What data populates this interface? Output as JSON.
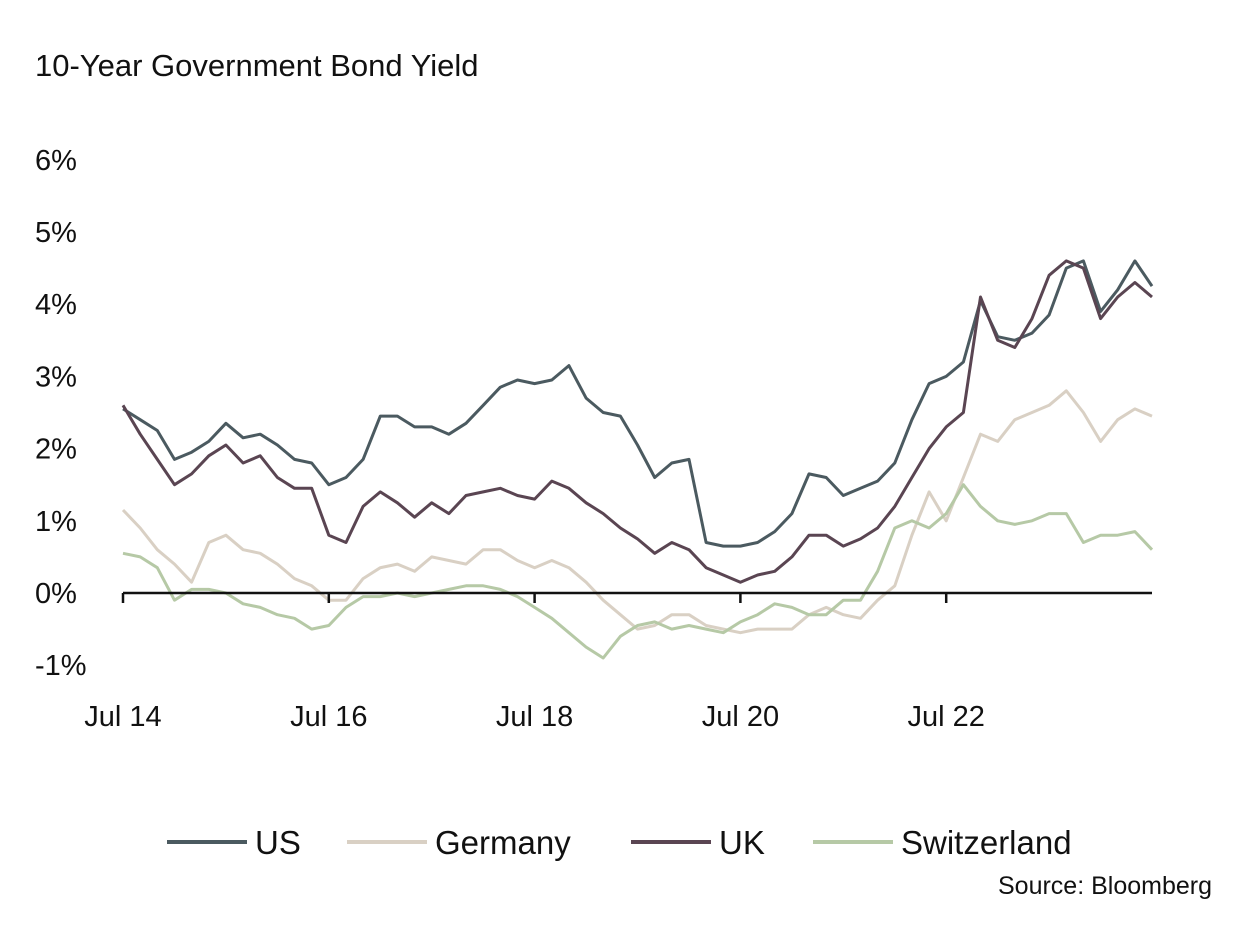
{
  "chart_data": {
    "type": "line",
    "title": "10-Year Government Bond Yield",
    "source": "Source: Bloomberg",
    "xlabel": "",
    "ylabel": "",
    "ylim": [
      -1,
      6
    ],
    "xlim": [
      2014.5,
      2024.5
    ],
    "y_ticks": [
      6,
      5,
      4,
      3,
      2,
      1,
      0,
      -1
    ],
    "y_tick_labels": [
      "6%",
      "5%",
      "4%",
      "3%",
      "2%",
      "1%",
      "0%",
      "-1%"
    ],
    "x_ticks": [
      2014.5,
      2016.5,
      2018.5,
      2020.5,
      2022.5
    ],
    "x_tick_labels": [
      "Jul 14",
      "Jul 16",
      "Jul 18",
      "Jul 20",
      "Jul 22"
    ],
    "grid": false,
    "legend_position": "bottom",
    "x_start": 2014.5,
    "x_step": 0.16667,
    "series": [
      {
        "name": "US",
        "color": "#4b5a60",
        "values": [
          2.55,
          2.4,
          2.25,
          1.85,
          1.95,
          2.1,
          2.35,
          2.15,
          2.2,
          2.05,
          1.85,
          1.8,
          1.5,
          1.6,
          1.85,
          2.45,
          2.45,
          2.3,
          2.3,
          2.2,
          2.35,
          2.6,
          2.85,
          2.95,
          2.9,
          2.95,
          3.15,
          2.7,
          2.5,
          2.45,
          2.05,
          1.6,
          1.8,
          1.85,
          0.7,
          0.65,
          0.65,
          0.7,
          0.85,
          1.1,
          1.65,
          1.6,
          1.35,
          1.45,
          1.55,
          1.8,
          2.4,
          2.9,
          3.0,
          3.2,
          4.05,
          3.55,
          3.5,
          3.6,
          3.85,
          4.5,
          4.6,
          3.9,
          4.2,
          4.6,
          4.25
        ]
      },
      {
        "name": "Germany",
        "color": "#d9d0c4",
        "values": [
          1.15,
          0.9,
          0.6,
          0.4,
          0.15,
          0.7,
          0.8,
          0.6,
          0.55,
          0.4,
          0.2,
          0.1,
          -0.1,
          -0.1,
          0.2,
          0.35,
          0.4,
          0.3,
          0.5,
          0.45,
          0.4,
          0.6,
          0.6,
          0.45,
          0.35,
          0.45,
          0.35,
          0.15,
          -0.1,
          -0.3,
          -0.5,
          -0.45,
          -0.3,
          -0.3,
          -0.45,
          -0.5,
          -0.55,
          -0.5,
          -0.5,
          -0.5,
          -0.3,
          -0.2,
          -0.3,
          -0.35,
          -0.1,
          0.1,
          0.8,
          1.4,
          1.0,
          1.6,
          2.2,
          2.1,
          2.4,
          2.5,
          2.6,
          2.8,
          2.5,
          2.1,
          2.4,
          2.55,
          2.45
        ]
      },
      {
        "name": "UK",
        "color": "#5a4552",
        "values": [
          2.6,
          2.2,
          1.85,
          1.5,
          1.65,
          1.9,
          2.05,
          1.8,
          1.9,
          1.6,
          1.45,
          1.45,
          0.8,
          0.7,
          1.2,
          1.4,
          1.25,
          1.05,
          1.25,
          1.1,
          1.35,
          1.4,
          1.45,
          1.35,
          1.3,
          1.55,
          1.45,
          1.25,
          1.1,
          0.9,
          0.75,
          0.55,
          0.7,
          0.6,
          0.35,
          0.25,
          0.15,
          0.25,
          0.3,
          0.5,
          0.8,
          0.8,
          0.65,
          0.75,
          0.9,
          1.2,
          1.6,
          2.0,
          2.3,
          2.5,
          4.1,
          3.5,
          3.4,
          3.8,
          4.4,
          4.6,
          4.5,
          3.8,
          4.1,
          4.3,
          4.1
        ]
      },
      {
        "name": "Switzerland",
        "color": "#b6c9a6",
        "values": [
          0.55,
          0.5,
          0.35,
          -0.1,
          0.05,
          0.05,
          0.0,
          -0.15,
          -0.2,
          -0.3,
          -0.35,
          -0.5,
          -0.45,
          -0.2,
          -0.05,
          -0.05,
          0.0,
          -0.05,
          0.0,
          0.05,
          0.1,
          0.1,
          0.05,
          -0.05,
          -0.2,
          -0.35,
          -0.55,
          -0.75,
          -0.9,
          -0.6,
          -0.45,
          -0.4,
          -0.5,
          -0.45,
          -0.5,
          -0.55,
          -0.4,
          -0.3,
          -0.15,
          -0.2,
          -0.3,
          -0.3,
          -0.1,
          -0.1,
          0.3,
          0.9,
          1.0,
          0.9,
          1.1,
          1.5,
          1.2,
          1.0,
          0.95,
          1.0,
          1.1,
          1.1,
          0.7,
          0.8,
          0.8,
          0.85,
          0.6
        ]
      }
    ]
  }
}
